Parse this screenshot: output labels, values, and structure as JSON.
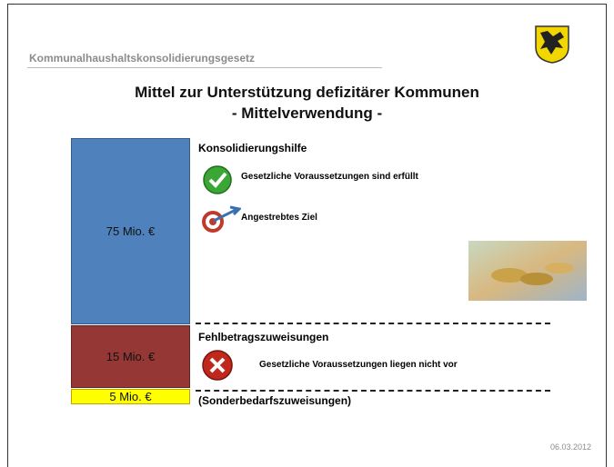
{
  "header": {
    "title": "Kommunalhaushaltskonsolidierungsgesetz"
  },
  "slide": {
    "title": [
      "Mittel zur Unterstützung defizitärer Kommunen",
      "- Mittelverwendung -"
    ]
  },
  "blocks": [
    {
      "amount": "75 Mio. €",
      "heading": "Konsolidierungshilfe",
      "items": [
        "Gesetzliche Voraussetzungen sind erfüllt",
        "Angestrebtes Ziel"
      ]
    },
    {
      "amount": "15 Mio. €",
      "heading": "Fehlbetragszuweisungen",
      "items": [
        "Gesetzliche Voraussetzungen liegen nicht vor"
      ]
    },
    {
      "amount": "5 Mio. €",
      "heading": "(Sonderbedarfszuweisungen)"
    }
  ],
  "footer": {
    "date": "06.03.2012"
  }
}
